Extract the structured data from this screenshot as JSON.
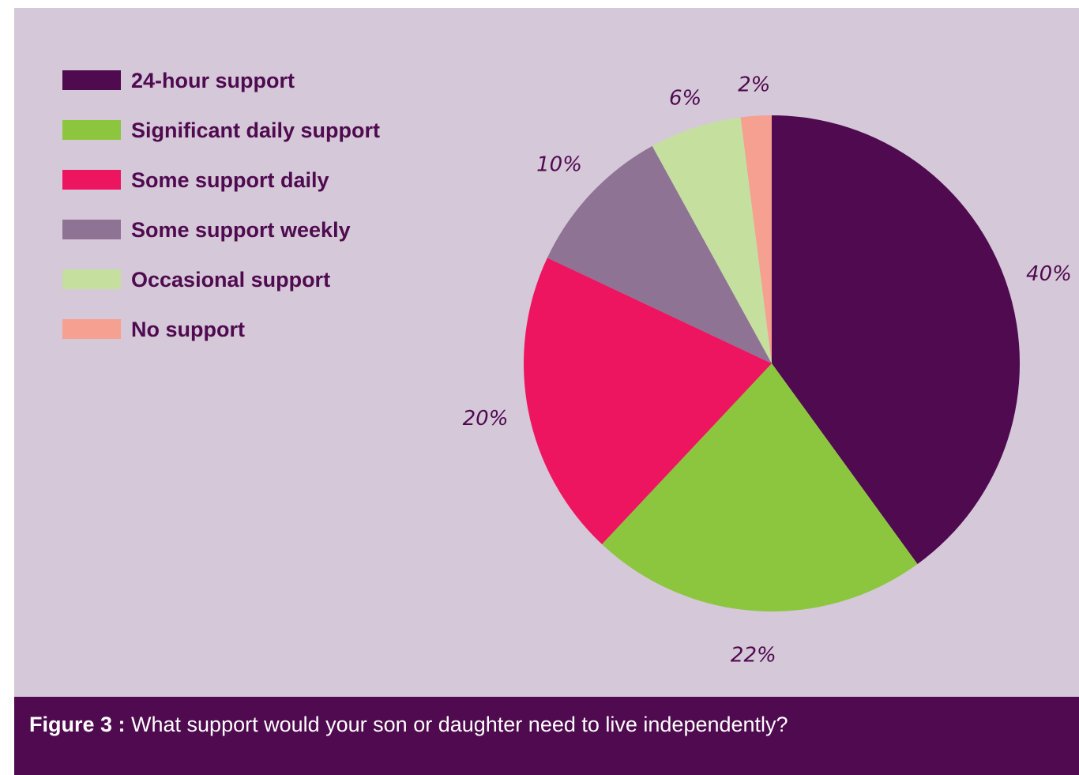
{
  "chart_data": {
    "type": "pie",
    "title": "",
    "slices": [
      {
        "label": "24-hour support",
        "value": 40,
        "value_label": "40%",
        "color": "#4f0a50"
      },
      {
        "label": "Significant daily support",
        "value": 22,
        "value_label": "22%",
        "color": "#8cc63f"
      },
      {
        "label": "Some support daily",
        "value": 20,
        "value_label": "20%",
        "color": "#ee1560"
      },
      {
        "label": "Some support weekly",
        "value": 10,
        "value_label": "10%",
        "color": "#8e7395"
      },
      {
        "label": "Occasional support",
        "value": 6,
        "value_label": "6%",
        "color": "#c5df9f"
      },
      {
        "label": "No support",
        "value": 2,
        "value_label": "2%",
        "color": "#f5a090"
      }
    ],
    "legend_position": "top-left",
    "start": "top, clockwise"
  },
  "caption": {
    "prefix": "Figure 3 :",
    "text": " What support would your son or daughter need to live independently?"
  },
  "colors": {
    "panel_background": "#d5c8d8",
    "caption_background": "#4f0a50",
    "text": "#4f0a50"
  }
}
